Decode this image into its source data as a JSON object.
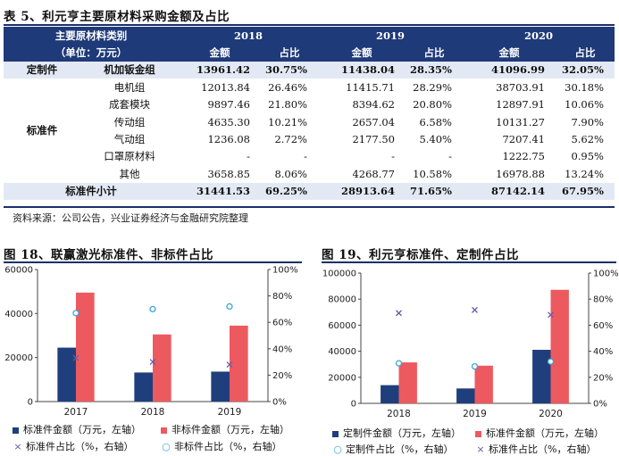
{
  "table": {
    "title": "表 5、利元亨主要原材料采购金额及占比",
    "header": {
      "col0_line1": "主要原材料类别",
      "col0_line2": "（单位：万元）",
      "years": [
        "2018",
        "2019",
        "2020"
      ],
      "amount": "金额",
      "share": "占比"
    },
    "custom": {
      "group": "定制件",
      "item": "机加钣金组",
      "values": [
        "13961.42",
        "30.75%",
        "11438.04",
        "28.35%",
        "41096.99",
        "32.05%"
      ]
    },
    "standard": {
      "group": "标准件",
      "rows": [
        {
          "item": "电机组",
          "values": [
            "12013.84",
            "26.46%",
            "11415.71",
            "28.29%",
            "38703.91",
            "30.18%"
          ]
        },
        {
          "item": "成套模块",
          "values": [
            "9897.46",
            "21.80%",
            "8394.62",
            "20.80%",
            "12897.91",
            "10.06%"
          ]
        },
        {
          "item": "传动组",
          "values": [
            "4635.30",
            "10.21%",
            "2657.04",
            "6.58%",
            "10131.27",
            "7.90%"
          ]
        },
        {
          "item": "气动组",
          "values": [
            "1236.08",
            "2.72%",
            "2177.50",
            "5.40%",
            "7207.41",
            "5.62%"
          ]
        },
        {
          "item": "口罩原材料",
          "values": [
            "-",
            "-",
            "-",
            "-",
            "1222.75",
            "0.95%"
          ]
        },
        {
          "item": "其他",
          "values": [
            "3658.85",
            "8.06%",
            "4268.77",
            "10.58%",
            "16978.88",
            "13.24%"
          ]
        }
      ]
    },
    "subtotal": {
      "label": "标准件小计",
      "values": [
        "31441.53",
        "69.25%",
        "28913.64",
        "71.65%",
        "87142.14",
        "67.95%"
      ]
    },
    "source": "资料来源：公司公告，兴业证券经济与金融研究院整理"
  },
  "chart_data": [
    {
      "type": "bar",
      "title": "图 18、联赢激光标准件、非标件占比",
      "categories": [
        "2017",
        "2018",
        "2019"
      ],
      "series": [
        {
          "name": "标准件金额（万元，左轴）",
          "axis": "left",
          "kind": "bar",
          "color": "#1f3e7c",
          "values": [
            24500,
            13200,
            13600
          ]
        },
        {
          "name": "非标件金额（万元，左轴）",
          "axis": "left",
          "kind": "bar",
          "color": "#ec5a5f",
          "values": [
            49500,
            30500,
            34500
          ]
        },
        {
          "name": "标准件占比（%，右轴）",
          "axis": "right",
          "kind": "marker-x",
          "color": "#6a5aa8",
          "values": [
            33,
            30,
            28
          ]
        },
        {
          "name": "非标件占比（%，右轴）",
          "axis": "right",
          "kind": "marker-circle",
          "color": "#3aa6d9",
          "values": [
            67,
            70,
            72
          ]
        }
      ],
      "ylim_left": [
        0,
        60000
      ],
      "yticks_left": [
        "0",
        "20000",
        "40000",
        "60000"
      ],
      "ylim_right": [
        0,
        100
      ],
      "yticks_right": [
        "0%",
        "20%",
        "40%",
        "60%",
        "80%",
        "100%"
      ]
    },
    {
      "type": "bar",
      "title": "图 19、利元亨标准件、定制件占比",
      "categories": [
        "2018",
        "2019",
        "2020"
      ],
      "series": [
        {
          "name": "定制件金额（万元，左轴）",
          "axis": "left",
          "kind": "bar",
          "color": "#1f3e7c",
          "values": [
            13961.42,
            11438.04,
            41096.99
          ]
        },
        {
          "name": "标准件金额（万元，左轴）",
          "axis": "left",
          "kind": "bar",
          "color": "#ec5a5f",
          "values": [
            31441.53,
            28913.64,
            87142.14
          ]
        },
        {
          "name": "定制件占比（%，右轴）",
          "axis": "right",
          "kind": "marker-circle",
          "color": "#3aa6d9",
          "values": [
            30.75,
            28.35,
            32.05
          ]
        },
        {
          "name": "标准件占比（%，右轴）",
          "axis": "right",
          "kind": "marker-x",
          "color": "#6a5aa8",
          "values": [
            69.25,
            71.65,
            67.95
          ]
        }
      ],
      "ylim_left": [
        0,
        100000
      ],
      "yticks_left": [
        "0",
        "20000",
        "40000",
        "60000",
        "80000",
        "100000"
      ],
      "ylim_right": [
        0,
        100
      ],
      "yticks_right": [
        "0%",
        "20%",
        "40%",
        "60%",
        "80%",
        "100%"
      ]
    }
  ]
}
